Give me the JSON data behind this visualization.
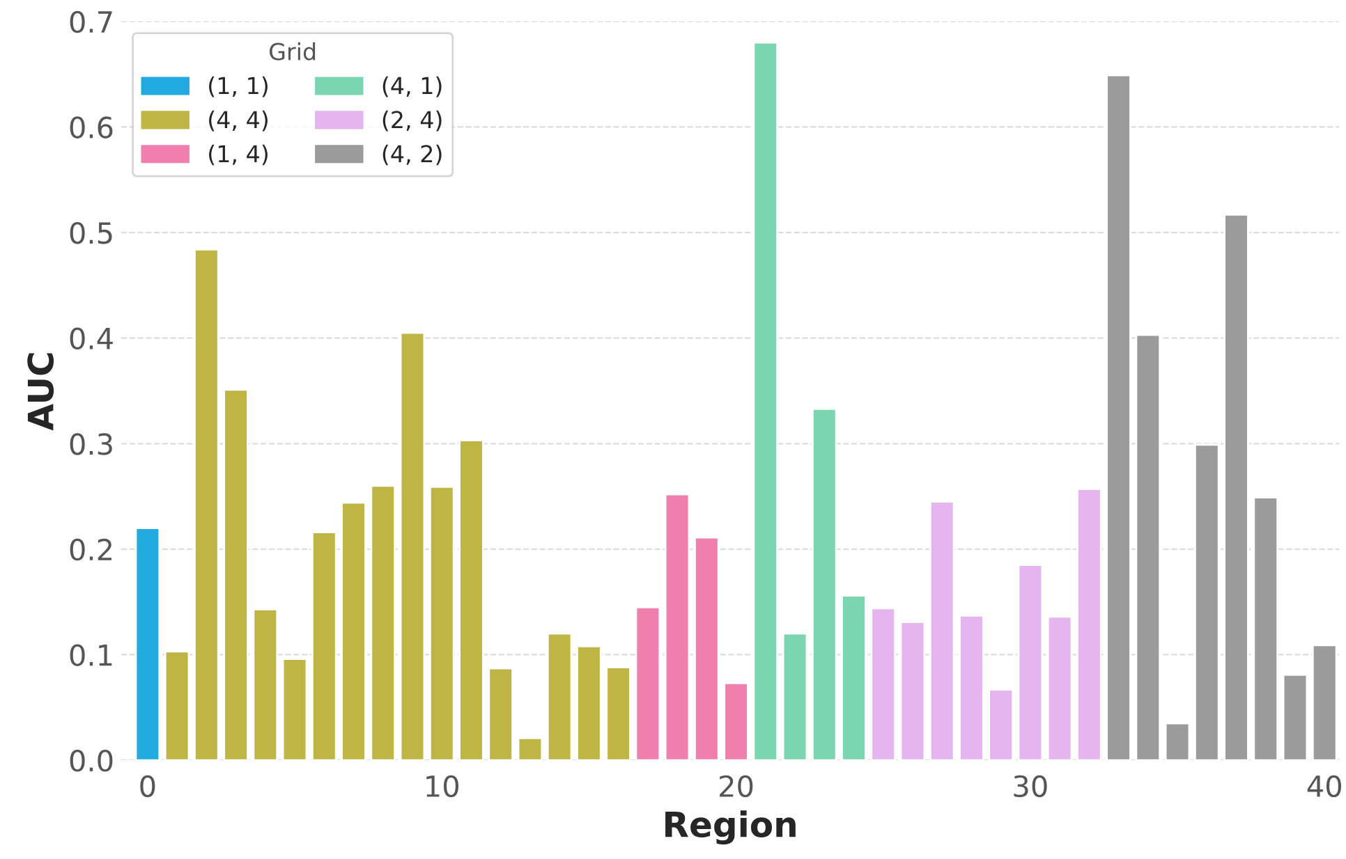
{
  "chart_data": {
    "type": "bar",
    "xlabel": "Region",
    "ylabel": "AUC",
    "legend_title": "Grid",
    "series": [
      {
        "name": "(1, 1)",
        "color": "#21aadd",
        "x": [
          0
        ],
        "values": [
          0.22
        ]
      },
      {
        "name": "(4, 4)",
        "color": "#bfb545",
        "x": [
          1,
          2,
          3,
          4,
          5,
          6,
          7,
          8,
          9,
          10,
          11,
          12,
          13,
          14,
          15,
          16
        ],
        "values": [
          0.103,
          0.484,
          0.351,
          0.143,
          0.096,
          0.216,
          0.244,
          0.26,
          0.405,
          0.259,
          0.303,
          0.087,
          0.021,
          0.12,
          0.108,
          0.088
        ]
      },
      {
        "name": "(1, 4)",
        "color": "#ef80ae",
        "x": [
          17,
          18,
          19,
          20
        ],
        "values": [
          0.145,
          0.252,
          0.211,
          0.073
        ]
      },
      {
        "name": "(4, 1)",
        "color": "#7ad5b0",
        "x": [
          21,
          22,
          23,
          24
        ],
        "values": [
          0.68,
          0.12,
          0.333,
          0.156
        ]
      },
      {
        "name": "(2, 4)",
        "color": "#e4b5ef",
        "x": [
          25,
          26,
          27,
          28,
          29,
          30,
          31,
          32
        ],
        "values": [
          0.144,
          0.131,
          0.245,
          0.137,
          0.067,
          0.185,
          0.136,
          0.257
        ]
      },
      {
        "name": "(4, 2)",
        "color": "#9b9b9b",
        "x": [
          33,
          34,
          35,
          36,
          37,
          38,
          39,
          40
        ],
        "values": [
          0.649,
          0.403,
          0.035,
          0.299,
          0.517,
          0.249,
          0.081,
          0.109
        ]
      }
    ],
    "xlim": [
      -0.9,
      40.5
    ],
    "xticks": [
      0,
      10,
      20,
      30,
      40
    ],
    "ylim": [
      0,
      0.7
    ],
    "yticks": [
      {
        "value": 0,
        "label": "0.0"
      },
      0.1,
      0.2,
      0.3,
      0.4,
      0.5,
      0.6,
      0.7
    ],
    "grid": "y",
    "legend": "top left"
  }
}
